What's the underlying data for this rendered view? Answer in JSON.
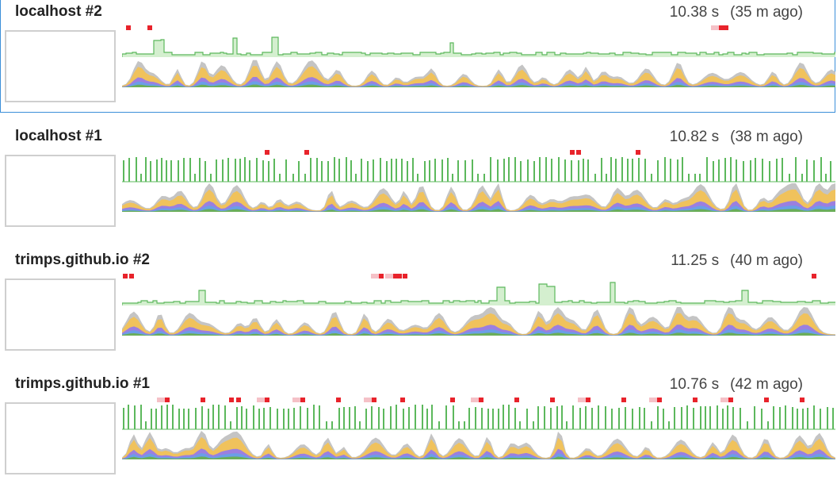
{
  "recordings": [
    {
      "title": "localhost #2",
      "duration": "10.38 s",
      "ago": "(35 m ago)",
      "selected": true,
      "seed": 11,
      "fps_style": "dense",
      "redmarks": [
        [
          0.005,
          false
        ],
        [
          0.035,
          false
        ],
        [
          0.837,
          true
        ],
        [
          0.843,
          false
        ]
      ]
    },
    {
      "title": "localhost #1",
      "duration": "10.82 s",
      "ago": "(38 m ago)",
      "selected": false,
      "seed": 27,
      "fps_style": "bars",
      "redmarks": [
        [
          0.2,
          false
        ],
        [
          0.255,
          false
        ],
        [
          0.628,
          false
        ],
        [
          0.637,
          false
        ],
        [
          0.72,
          false
        ]
      ]
    },
    {
      "title": "trimps.github.io #2",
      "duration": "11.25 s",
      "ago": "(40 m ago)",
      "selected": false,
      "seed": 43,
      "fps_style": "dense",
      "redmarks": [
        [
          0.001,
          false
        ],
        [
          0.01,
          false
        ],
        [
          0.36,
          true
        ],
        [
          0.38,
          true
        ],
        [
          0.385,
          false
        ],
        [
          0.393,
          false
        ],
        [
          0.967,
          false
        ]
      ]
    },
    {
      "title": "trimps.github.io #1",
      "duration": "10.76 s",
      "ago": "(42 m ago)",
      "selected": false,
      "seed": 59,
      "fps_style": "bars",
      "redmarks": [
        [
          0.06,
          true
        ],
        [
          0.11,
          false
        ],
        [
          0.15,
          false
        ],
        [
          0.16,
          false
        ],
        [
          0.2,
          true
        ],
        [
          0.25,
          true
        ],
        [
          0.3,
          false
        ],
        [
          0.35,
          true
        ],
        [
          0.39,
          false
        ],
        [
          0.46,
          false
        ],
        [
          0.5,
          true
        ],
        [
          0.55,
          false
        ],
        [
          0.6,
          false
        ],
        [
          0.65,
          true
        ],
        [
          0.7,
          false
        ],
        [
          0.75,
          true
        ],
        [
          0.8,
          false
        ],
        [
          0.85,
          true
        ],
        [
          0.9,
          false
        ],
        [
          0.95,
          false
        ]
      ]
    }
  ],
  "colors": {
    "fps_line": "#5cb85c",
    "fps_fill": "#d4efcf",
    "red": "#e8232b",
    "red_faded": "#f5c1c7",
    "script": "#f0c25c",
    "rendering": "#9b7fe0",
    "painting": "#6aae5a",
    "loading": "#6b9ee8",
    "other": "#c4c4c4"
  }
}
